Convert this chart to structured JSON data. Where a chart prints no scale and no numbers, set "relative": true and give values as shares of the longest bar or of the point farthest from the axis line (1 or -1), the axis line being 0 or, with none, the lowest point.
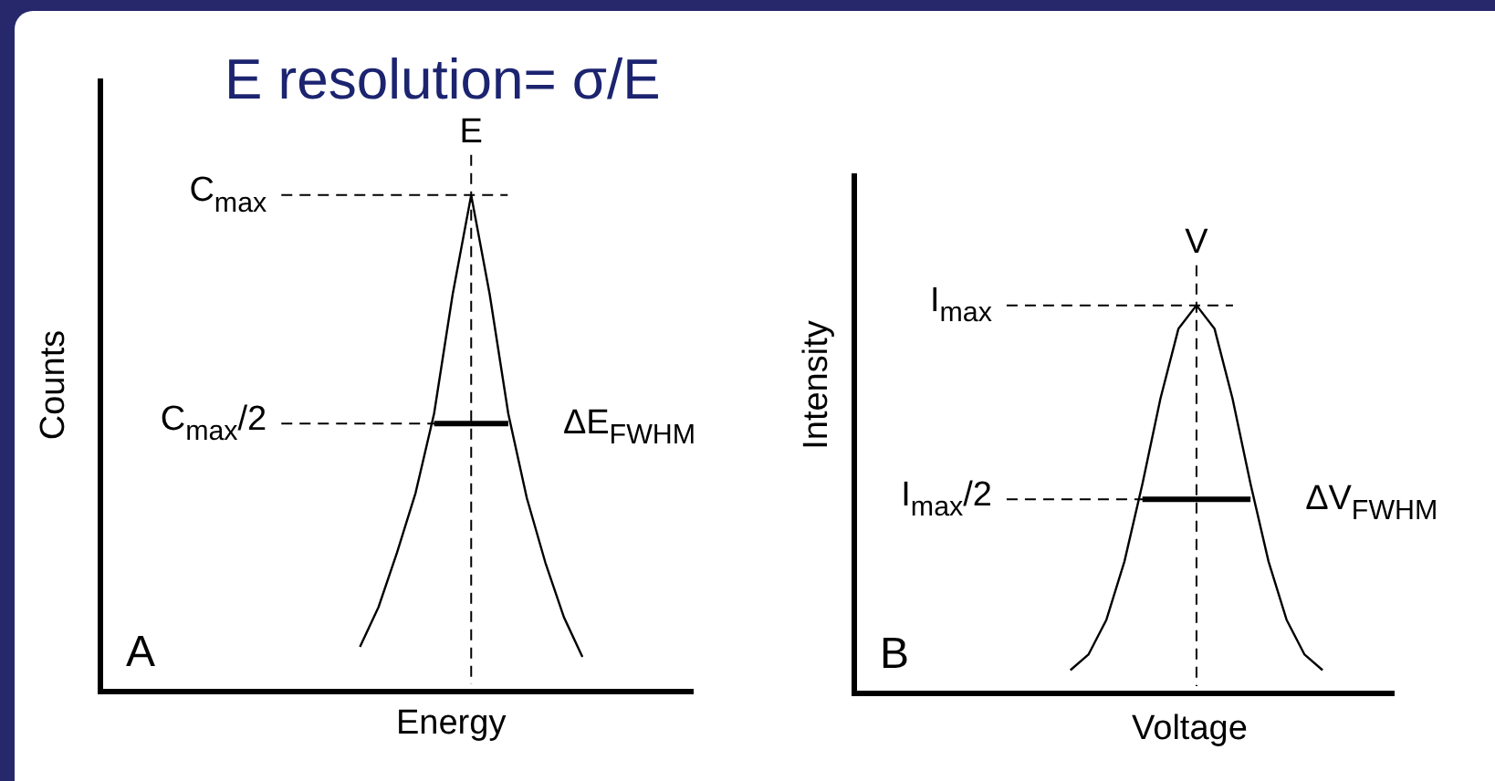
{
  "chart_data": [
    {
      "type": "line",
      "title": "E resolution= σ/E",
      "xlabel": "Energy",
      "ylabel": "Counts",
      "relative": true,
      "tick_labels": false,
      "categories": [
        null,
        null,
        null,
        null,
        null,
        null,
        null,
        null,
        null,
        null,
        null,
        null,
        null,
        null,
        null,
        null,
        null,
        null,
        null,
        null,
        null,
        null,
        null,
        null,
        null,
        null,
        null,
        null,
        null,
        null,
        null,
        null,
        null
      ],
      "series": [
        {
          "color": "#000000",
          "values": [
            null,
            null,
            null,
            null,
            null,
            null,
            null,
            null,
            null,
            null,
            null,
            null,
            null,
            null,
            0.09,
            0.17,
            0.28,
            0.4,
            0.56,
            0.8,
            1,
            0.8,
            0.56,
            0.39,
            0.26,
            0.15,
            0.07,
            null,
            null,
            null,
            null,
            null,
            null
          ]
        },
        {
          "name": "ΔE$_{FWHM}$",
          "color": "#000000",
          "values": [
            null,
            null,
            null,
            null,
            null,
            null,
            null,
            null,
            null,
            null,
            null,
            null,
            null,
            null,
            null,
            null,
            null,
            null,
            0.54,
            0.54,
            0.54,
            0.54,
            0.54,
            null,
            null,
            null,
            null,
            null,
            null,
            null,
            null,
            null,
            null
          ]
        }
      ],
      "annotations": [
        "A",
        {
          "text": "E"
        }
      ],
      "ref_lines": [
        {
          "axis": "y",
          "value": 1,
          "label": "C$_{max}$",
          "line_style": "dashed"
        },
        {
          "axis": "y",
          "value": 0.54,
          "label": "C$_{max}$/2",
          "line_style": "dashed"
        }
      ]
    },
    {
      "type": "line",
      "xlabel": "Voltage",
      "ylabel": "Intensity",
      "annotations": [
        "B",
        {
          "text": "V"
        }
      ],
      "relative": true,
      "tick_labels": false,
      "categories": [
        null,
        null,
        null,
        null,
        null,
        null,
        null,
        null,
        null,
        null,
        null,
        null,
        null,
        null,
        null,
        null,
        null,
        null,
        null,
        null,
        null,
        null,
        null,
        null,
        null,
        null,
        null,
        null,
        null,
        null,
        null
      ],
      "series": [
        {
          "color": "#000000",
          "values": [
            null,
            null,
            null,
            null,
            null,
            null,
            null,
            null,
            null,
            null,
            null,
            null,
            0.06,
            0.1,
            0.19,
            0.34,
            0.54,
            0.76,
            0.94,
            1,
            0.94,
            0.76,
            0.54,
            0.34,
            0.19,
            0.1,
            0.06,
            null,
            null,
            null,
            null
          ]
        },
        {
          "name": "ΔV$_{FWHM}$",
          "color": "#000000",
          "values": [
            null,
            null,
            null,
            null,
            null,
            null,
            null,
            null,
            null,
            null,
            null,
            null,
            null,
            null,
            null,
            null,
            0.5,
            0.5,
            0.5,
            0.5,
            0.5,
            0.5,
            0.5,
            null,
            null,
            null,
            null,
            null,
            null,
            null,
            null
          ]
        }
      ],
      "ref_lines": [
        {
          "axis": "y",
          "value": 1,
          "label": "I$_{max}$",
          "line_style": "dashed"
        },
        {
          "axis": "y",
          "value": 0.5,
          "label": "I$_{max}$/2",
          "line_style": "dashed"
        }
      ]
    }
  ]
}
